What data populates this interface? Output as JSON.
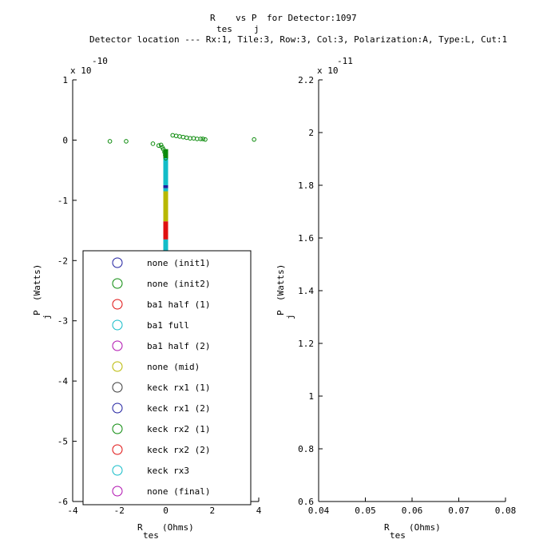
{
  "title": {
    "line1": "R",
    "line1_b": "vs P",
    "line1_c": "for Detector:1097",
    "line1_sub1": "tes",
    "line1_sub2": "j",
    "line2": "Detector location --- Rx:1, Tile:3, Row:3, Col:3, Polarization:A, Type:L, Cut:1"
  },
  "chart_data": [
    {
      "type": "scatter",
      "y_exponent_label": "x 10",
      "y_exponent": "-10",
      "xlabel": "R",
      "xlabel_sub": "tes",
      "xlabel_unit": "(Ohms)",
      "ylabel": "P",
      "ylabel_sub": "j",
      "ylabel_unit": "(Watts)",
      "xlim": [
        -4,
        4
      ],
      "ylim": [
        -6,
        1
      ],
      "xticks": [
        -4,
        -2,
        0,
        2,
        4
      ],
      "yticks": [
        1,
        0,
        -1,
        -2,
        -3,
        -4,
        -5,
        -6
      ],
      "legend": [
        {
          "label": "none (init1)",
          "color": "#1f1fa0"
        },
        {
          "label": "none (init2)",
          "color": "#0a8a0a"
        },
        {
          "label": "ba1 half (1)",
          "color": "#e01010"
        },
        {
          "label": "ba1 full",
          "color": "#12bcc8"
        },
        {
          "label": "ba1 half (2)",
          "color": "#b010b0"
        },
        {
          "label": "none (mid)",
          "color": "#b8b800"
        },
        {
          "label": "keck rx1 (1)",
          "color": "#3a3a3a"
        },
        {
          "label": "keck rx1 (2)",
          "color": "#1f1fa0"
        },
        {
          "label": "keck rx2 (1)",
          "color": "#0a8a0a"
        },
        {
          "label": "keck rx2 (2)",
          "color": "#e01010"
        },
        {
          "label": "keck rx3",
          "color": "#12bcc8"
        },
        {
          "label": "none (final)",
          "color": "#b010b0"
        }
      ],
      "series": [
        {
          "name": "none (init2)",
          "color": "#0a8a0a",
          "points": [
            [
              -2.4,
              -0.02
            ],
            [
              -1.7,
              -0.02
            ],
            [
              -0.55,
              -0.06
            ],
            [
              -0.3,
              -0.09
            ],
            [
              -0.2,
              -0.08
            ],
            [
              -0.15,
              -0.12
            ],
            [
              -0.1,
              -0.15
            ],
            [
              -0.05,
              -0.2
            ],
            [
              -0.02,
              -0.25
            ],
            [
              0.0,
              -0.3
            ],
            [
              0.3,
              0.08
            ],
            [
              0.45,
              0.07
            ],
            [
              0.6,
              0.06
            ],
            [
              0.75,
              0.05
            ],
            [
              0.9,
              0.04
            ],
            [
              1.05,
              0.03
            ],
            [
              1.2,
              0.03
            ],
            [
              1.35,
              0.02
            ],
            [
              1.5,
              0.02
            ],
            [
              1.6,
              0.02
            ],
            [
              1.7,
              0.01
            ],
            [
              3.8,
              0.01
            ]
          ]
        }
      ],
      "vertical_segments": [
        {
          "color": "#0a8a0a",
          "x": 0.0,
          "y_from": -0.15,
          "y_to": -0.3
        },
        {
          "color": "#12bcc8",
          "x": 0.0,
          "y_from": -0.3,
          "y_to": -0.75
        },
        {
          "color": "#1f1fa0",
          "x": 0.0,
          "y_from": -0.75,
          "y_to": -0.8
        },
        {
          "color": "#12bcc8",
          "x": 0.0,
          "y_from": -0.8,
          "y_to": -0.85
        },
        {
          "color": "#b8b800",
          "x": 0.0,
          "y_from": -0.85,
          "y_to": -1.35
        },
        {
          "color": "#e01010",
          "x": 0.0,
          "y_from": -1.35,
          "y_to": -1.65
        },
        {
          "color": "#12bcc8",
          "x": 0.0,
          "y_from": -1.65,
          "y_to": -1.85
        }
      ]
    },
    {
      "type": "scatter",
      "y_exponent_label": "x 10",
      "y_exponent": "-11",
      "xlabel": "R",
      "xlabel_sub": "tes",
      "xlabel_unit": "(Ohms)",
      "ylabel": "P",
      "ylabel_sub": "j",
      "ylabel_unit": "(Watts)",
      "xlim": [
        0.04,
        0.08
      ],
      "ylim": [
        0.6,
        2.2
      ],
      "xticks": [
        "0.04",
        "0.05",
        "0.06",
        "0.07",
        "0.08"
      ],
      "yticks": [
        "2.2",
        "2",
        "1.8",
        "1.6",
        "1.4",
        "1.2",
        "1",
        "0.8",
        "0.6"
      ],
      "series": []
    }
  ]
}
